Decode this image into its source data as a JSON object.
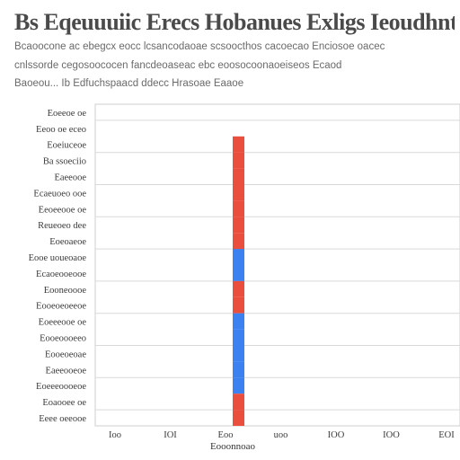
{
  "title": "Bs Eqeuuuiic Erecs Hobanues Exligs Ieoudhntiies Eaug",
  "subtitle_lines": [
    "Bcaoocone ac ebegcx eocc lcsancodaoae scsoocthos cacoecao Enciosoe oacec",
    "cnlssorde cegosoococen fancdeoaseac ebc eoosocoonaoeiseos Ecaod",
    "Baoeou... Ib Edfuchspaacd ddecc Hrasoae Eaaoe"
  ],
  "chart_data": {
    "type": "bar",
    "orientation": "horizontal",
    "stacked": true,
    "title": "Bs Eqeuuuiic Erecs Hobanues Exligs Ieoudhntiies Eaug",
    "xlabel": "Eooonnoao",
    "ylabel": "",
    "categories": [
      "Eoeeoe oe",
      "Eeoo oe eceo",
      "Eoeiuceoe",
      "Ba ssoeciio",
      "Eaeeooe",
      "Ecaeuoeo ooe",
      "Eeoeeooe oe",
      "Reueoeo dee",
      "Eoeoaeoe",
      "Eooe uoueoaoe",
      "Ecaoeooeooe",
      "Eooneoooe",
      "Eooeoeoeeoe",
      "Eoeeeooe oe",
      "Eooeoooeeo",
      "Eooeoeoae",
      "Eaeeooeoe",
      "Eoeeeoooeoe",
      "Eoaooee oe",
      "Eeee oeeooe"
    ],
    "xticks": [
      "Ioo",
      "IOI",
      "Eoo",
      "uoo",
      "IOO",
      "IOO",
      "EOI"
    ],
    "xlim": [
      0,
      100
    ],
    "series": [
      {
        "name": "",
        "color": "#ea4e3c",
        "values": [
          0,
          0,
          50,
          50,
          50,
          50,
          50,
          50,
          50,
          50,
          0,
          50,
          50,
          0,
          0,
          0,
          0,
          0,
          50,
          50
        ]
      },
      {
        "name": "",
        "color": "#3b82f0",
        "values": [
          0,
          0,
          0,
          0,
          0,
          0,
          0,
          0,
          0,
          50,
          50,
          0,
          0,
          50,
          50,
          50,
          50,
          50,
          0,
          0
        ]
      }
    ],
    "grid": true,
    "legend": "none"
  },
  "colors": {
    "bar_red": "#ea4e3c",
    "bar_blue": "#3b82f0",
    "grid": "#d9d9d9",
    "text": "#333333"
  }
}
